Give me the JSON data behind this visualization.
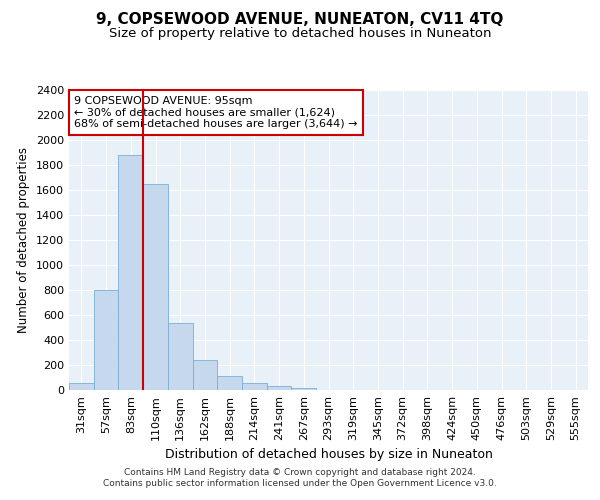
{
  "title": "9, COPSEWOOD AVENUE, NUNEATON, CV11 4TQ",
  "subtitle": "Size of property relative to detached houses in Nuneaton",
  "xlabel": "Distribution of detached houses by size in Nuneaton",
  "ylabel": "Number of detached properties",
  "bar_labels": [
    "31sqm",
    "57sqm",
    "83sqm",
    "110sqm",
    "136sqm",
    "162sqm",
    "188sqm",
    "214sqm",
    "241sqm",
    "267sqm",
    "293sqm",
    "319sqm",
    "345sqm",
    "372sqm",
    "398sqm",
    "424sqm",
    "450sqm",
    "476sqm",
    "503sqm",
    "529sqm",
    "555sqm"
  ],
  "bar_values": [
    55,
    800,
    1880,
    1650,
    540,
    240,
    110,
    55,
    30,
    20,
    0,
    0,
    0,
    0,
    0,
    0,
    0,
    0,
    0,
    0,
    0
  ],
  "bar_color": "#c5d8ee",
  "bar_edge_color": "#7aafd4",
  "vline_color": "#cc0000",
  "ylim": [
    0,
    2400
  ],
  "yticks": [
    0,
    200,
    400,
    600,
    800,
    1000,
    1200,
    1400,
    1600,
    1800,
    2000,
    2200,
    2400
  ],
  "annotation_text": "9 COPSEWOOD AVENUE: 95sqm\n← 30% of detached houses are smaller (1,624)\n68% of semi-detached houses are larger (3,644) →",
  "annotation_box_color": "#ffffff",
  "annotation_box_edge": "#cc0000",
  "footer_line1": "Contains HM Land Registry data © Crown copyright and database right 2024.",
  "footer_line2": "Contains public sector information licensed under the Open Government Licence v3.0.",
  "plot_bg_color": "#e8f0f8",
  "grid_color": "#ffffff",
  "title_fontsize": 11,
  "subtitle_fontsize": 9.5,
  "tick_fontsize": 8,
  "ylabel_fontsize": 8.5,
  "xlabel_fontsize": 9,
  "annotation_fontsize": 8,
  "footer_fontsize": 6.5
}
